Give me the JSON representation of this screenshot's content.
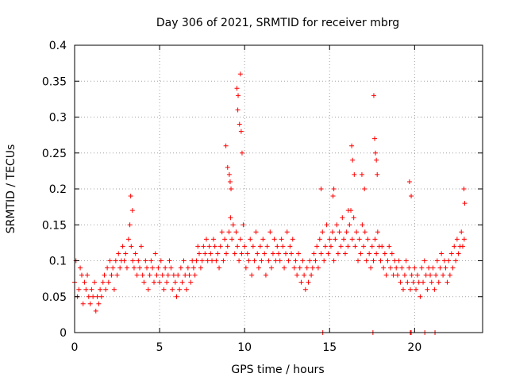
{
  "chart_data": {
    "type": "scatter",
    "title": "Day 306 of 2021, SRMTID for receiver mbrg",
    "xlabel": "GPS time / hours",
    "ylabel": "SRMTID / TECUs",
    "xlim": [
      0,
      24
    ],
    "ylim": [
      0,
      0.4
    ],
    "xticks": [
      0,
      5,
      10,
      15,
      20
    ],
    "yticks": [
      0,
      0.05,
      0.1,
      0.15,
      0.2,
      0.25,
      0.3,
      0.35,
      0.4
    ],
    "xtick_labels": [
      "0",
      "5",
      "10",
      "15",
      "20"
    ],
    "ytick_labels": [
      "0",
      "0.05",
      "0.1",
      "0.15",
      "0.2",
      "0.25",
      "0.3",
      "0.35",
      "0.4"
    ],
    "grid": true,
    "marker": "+",
    "series": [
      {
        "name": "SRMTID",
        "color": "#ff0000",
        "x": [
          0.0,
          0.08,
          0.17,
          0.25,
          0.33,
          0.42,
          0.5,
          0.58,
          0.67,
          0.75,
          0.83,
          0.92,
          1.0,
          1.08,
          1.17,
          1.25,
          1.33,
          1.42,
          1.5,
          1.58,
          1.67,
          1.75,
          1.83,
          1.92,
          2.0,
          2.08,
          2.17,
          2.25,
          2.33,
          2.42,
          2.5,
          2.58,
          2.67,
          2.75,
          2.83,
          2.92,
          3.0,
          3.08,
          3.17,
          3.25,
          3.33,
          3.42,
          3.5,
          3.58,
          3.67,
          3.75,
          3.83,
          3.92,
          4.0,
          4.08,
          4.17,
          4.25,
          4.33,
          4.42,
          4.5,
          4.58,
          4.67,
          4.75,
          4.83,
          4.92,
          5.0,
          5.08,
          5.17,
          5.25,
          5.33,
          5.42,
          5.5,
          5.58,
          5.67,
          5.75,
          5.83,
          5.92,
          6.0,
          6.08,
          6.17,
          6.25,
          6.33,
          6.42,
          6.5,
          6.58,
          6.67,
          6.75,
          6.83,
          6.92,
          7.0,
          7.08,
          7.17,
          7.25,
          7.33,
          7.42,
          7.5,
          7.58,
          7.67,
          7.75,
          7.83,
          7.92,
          8.0,
          8.08,
          8.17,
          8.25,
          8.33,
          8.42,
          8.5,
          8.58,
          8.67,
          8.75,
          8.83,
          8.92,
          9.0,
          9.08,
          9.17,
          9.25,
          9.33,
          9.42,
          9.5,
          9.58,
          9.67,
          9.75,
          9.83,
          9.92,
          10.0,
          10.08,
          10.17,
          10.25,
          10.33,
          10.42,
          10.5,
          10.58,
          10.67,
          10.75,
          10.83,
          10.92,
          11.0,
          11.08,
          11.17,
          11.25,
          11.33,
          11.42,
          11.5,
          11.58,
          11.67,
          11.75,
          11.83,
          11.92,
          12.0,
          12.08,
          12.17,
          12.25,
          12.33,
          12.42,
          12.5,
          12.58,
          12.67,
          12.75,
          12.83,
          12.92,
          13.0,
          13.08,
          13.17,
          13.25,
          13.33,
          13.42,
          13.5,
          13.58,
          13.67,
          13.75,
          13.83,
          13.92,
          14.0,
          14.08,
          14.17,
          14.25,
          14.33,
          14.42,
          14.5,
          14.58,
          14.67,
          14.75,
          14.83,
          14.92,
          15.0,
          15.08,
          15.17,
          15.25,
          15.33,
          15.42,
          15.5,
          15.58,
          15.67,
          15.75,
          15.83,
          15.92,
          16.0,
          16.08,
          16.17,
          16.25,
          16.33,
          16.42,
          16.5,
          16.58,
          16.67,
          16.75,
          16.83,
          16.92,
          17.0,
          17.08,
          17.17,
          17.25,
          17.33,
          17.42,
          17.5,
          17.58,
          17.67,
          17.75,
          17.83,
          17.92,
          18.0,
          18.08,
          18.17,
          18.25,
          18.33,
          18.42,
          18.5,
          18.58,
          18.67,
          18.75,
          18.83,
          18.92,
          19.0,
          19.08,
          19.17,
          19.25,
          19.33,
          19.42,
          19.5,
          19.58,
          19.67,
          19.75,
          19.83,
          19.92,
          20.0,
          20.08,
          20.17,
          20.25,
          20.33,
          20.42,
          20.5,
          20.58,
          20.67,
          20.75,
          20.83,
          20.92,
          21.0,
          21.08,
          21.17,
          21.25,
          21.33,
          21.42,
          21.5,
          21.58,
          21.67,
          21.75,
          21.83,
          21.92,
          22.0,
          22.08,
          22.17,
          22.25,
          22.33,
          22.42,
          22.5,
          22.58,
          22.67,
          22.75,
          22.83,
          22.92,
          9.55,
          9.6,
          9.7,
          9.75,
          9.62,
          9.8,
          9.85,
          8.9,
          9.0,
          9.1,
          9.15,
          9.2,
          17.6,
          17.65,
          17.7,
          17.75,
          17.8,
          16.3,
          16.35,
          16.45,
          15.2,
          15.25,
          16.9,
          17.05,
          16.1,
          14.5,
          19.7,
          19.8,
          22.9,
          22.95,
          3.3,
          3.4,
          14.6,
          17.55,
          19.75,
          20.6,
          21.2,
          19.8
        ],
        "y": [
          0.07,
          0.1,
          0.05,
          0.06,
          0.09,
          0.08,
          0.04,
          0.07,
          0.06,
          0.08,
          0.05,
          0.04,
          0.06,
          0.05,
          0.07,
          0.03,
          0.05,
          0.04,
          0.06,
          0.05,
          0.07,
          0.08,
          0.06,
          0.09,
          0.07,
          0.1,
          0.08,
          0.09,
          0.06,
          0.1,
          0.08,
          0.11,
          0.09,
          0.1,
          0.12,
          0.1,
          0.11,
          0.09,
          0.13,
          0.15,
          0.12,
          0.1,
          0.09,
          0.11,
          0.08,
          0.1,
          0.09,
          0.12,
          0.08,
          0.07,
          0.1,
          0.09,
          0.06,
          0.08,
          0.1,
          0.09,
          0.07,
          0.11,
          0.08,
          0.09,
          0.07,
          0.1,
          0.08,
          0.06,
          0.09,
          0.07,
          0.08,
          0.1,
          0.09,
          0.06,
          0.08,
          0.07,
          0.05,
          0.08,
          0.06,
          0.09,
          0.07,
          0.1,
          0.08,
          0.06,
          0.09,
          0.08,
          0.07,
          0.1,
          0.09,
          0.08,
          0.1,
          0.12,
          0.11,
          0.09,
          0.1,
          0.12,
          0.11,
          0.13,
          0.1,
          0.12,
          0.11,
          0.1,
          0.13,
          0.12,
          0.1,
          0.11,
          0.09,
          0.12,
          0.14,
          0.1,
          0.13,
          0.11,
          0.12,
          0.14,
          0.16,
          0.13,
          0.15,
          0.11,
          0.14,
          0.12,
          0.1,
          0.13,
          0.11,
          0.15,
          0.12,
          0.09,
          0.11,
          0.1,
          0.13,
          0.08,
          0.12,
          0.1,
          0.14,
          0.11,
          0.09,
          0.12,
          0.1,
          0.13,
          0.11,
          0.08,
          0.12,
          0.1,
          0.14,
          0.09,
          0.11,
          0.13,
          0.1,
          0.12,
          0.11,
          0.1,
          0.13,
          0.12,
          0.09,
          0.11,
          0.14,
          0.1,
          0.12,
          0.11,
          0.13,
          0.09,
          0.1,
          0.08,
          0.11,
          0.09,
          0.07,
          0.1,
          0.08,
          0.06,
          0.09,
          0.07,
          0.1,
          0.08,
          0.09,
          0.11,
          0.1,
          0.12,
          0.09,
          0.13,
          0.11,
          0.14,
          0.1,
          0.12,
          0.15,
          0.11,
          0.13,
          0.12,
          0.14,
          0.1,
          0.13,
          0.15,
          0.11,
          0.14,
          0.12,
          0.16,
          0.13,
          0.11,
          0.14,
          0.12,
          0.15,
          0.17,
          0.13,
          0.16,
          0.12,
          0.14,
          0.1,
          0.13,
          0.11,
          0.15,
          0.12,
          0.14,
          0.1,
          0.13,
          0.11,
          0.09,
          0.12,
          0.1,
          0.13,
          0.11,
          0.14,
          0.12,
          0.1,
          0.12,
          0.09,
          0.11,
          0.08,
          0.1,
          0.12,
          0.09,
          0.11,
          0.08,
          0.1,
          0.09,
          0.08,
          0.1,
          0.07,
          0.09,
          0.06,
          0.08,
          0.1,
          0.07,
          0.09,
          0.06,
          0.08,
          0.07,
          0.09,
          0.06,
          0.08,
          0.07,
          0.05,
          0.09,
          0.07,
          0.1,
          0.08,
          0.06,
          0.09,
          0.08,
          0.07,
          0.09,
          0.06,
          0.08,
          0.1,
          0.07,
          0.09,
          0.11,
          0.08,
          0.1,
          0.09,
          0.07,
          0.1,
          0.08,
          0.11,
          0.09,
          0.12,
          0.1,
          0.13,
          0.11,
          0.12,
          0.14,
          0.12,
          0.13,
          0.34,
          0.31,
          0.29,
          0.36,
          0.33,
          0.28,
          0.25,
          0.26,
          0.23,
          0.22,
          0.21,
          0.2,
          0.33,
          0.27,
          0.25,
          0.24,
          0.22,
          0.26,
          0.24,
          0.22,
          0.19,
          0.2,
          0.22,
          0.2,
          0.17,
          0.2,
          0.21,
          0.19,
          0.2,
          0.18,
          0.19,
          0.17,
          0.0,
          0.0,
          0.0,
          0.0,
          0.0,
          0.0
        ]
      }
    ]
  }
}
